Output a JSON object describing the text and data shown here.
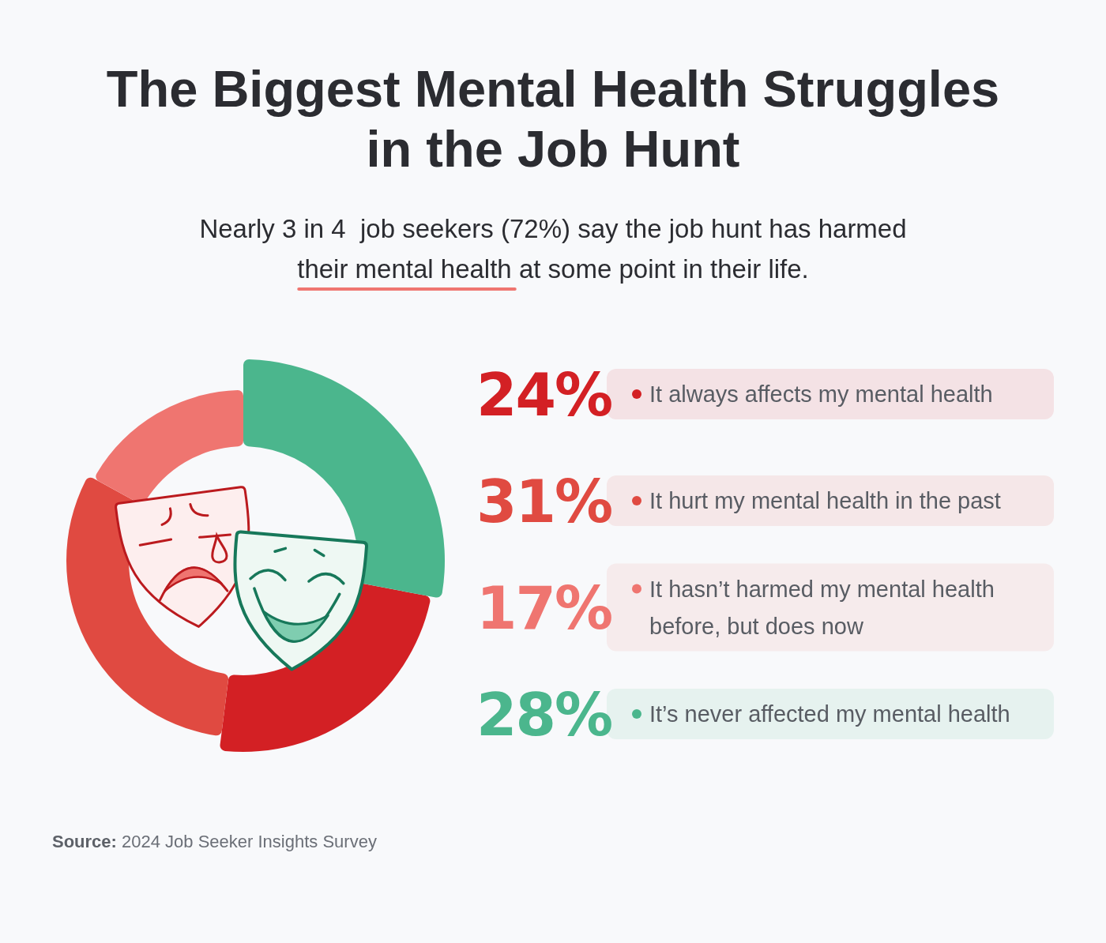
{
  "chart_data": {
    "type": "donut",
    "title": "The Biggest Mental Health Struggles in the Job Hunt",
    "subtitle": "Nearly 3 in 4  job seekers (72%) say the job hunt has harmed their mental health at some point in their life.",
    "categories": [
      "It always affects my mental health",
      "It hurt my mental health in the past",
      "It hasn’t harmed my mental health before, but does now",
      "It’s never affected my mental health"
    ],
    "values": [
      24,
      31,
      17,
      28
    ],
    "colors": [
      "#d32024",
      "#e04a41",
      "#ef7570",
      "#4bb68d"
    ],
    "value_labels": [
      "24%",
      "31%",
      "17%",
      "28%"
    ],
    "legend": "right",
    "annotations": [
      "Source: 2024 Job Seeker Insights Survey"
    ]
  }
}
